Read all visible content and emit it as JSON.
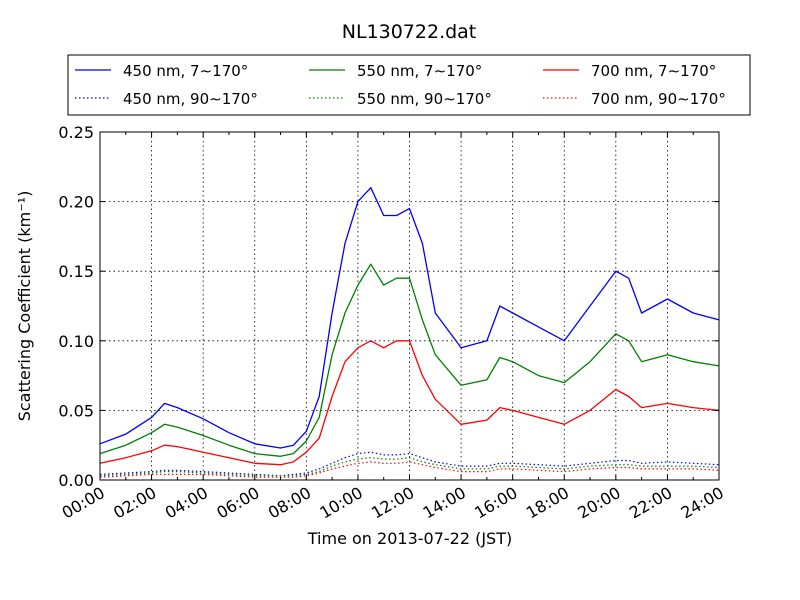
{
  "chart_data": {
    "type": "line",
    "title": "NL130722.dat",
    "xlabel": "Time on 2013-07-22 (JST)",
    "ylabel": "Scattering Coefficient (km⁻¹)",
    "xlim": [
      "00:00",
      "24:00"
    ],
    "ylim": [
      0,
      0.25
    ],
    "x_ticks": [
      "00:00",
      "02:00",
      "04:00",
      "06:00",
      "08:00",
      "10:00",
      "12:00",
      "14:00",
      "16:00",
      "18:00",
      "20:00",
      "22:00",
      "24:00"
    ],
    "y_ticks": [
      "0.00",
      "0.05",
      "0.10",
      "0.15",
      "0.20",
      "0.25"
    ],
    "grid": true,
    "legend_position": "top",
    "x_hours": [
      0,
      1,
      2,
      2.5,
      3,
      4,
      5,
      6,
      7,
      7.5,
      8,
      8.5,
      9,
      9.5,
      10,
      10.5,
      11,
      11.5,
      12,
      12.5,
      13,
      14,
      15,
      15.5,
      16,
      17,
      18,
      19,
      20,
      20.5,
      21,
      22,
      23,
      24
    ],
    "series": [
      {
        "name": "450 nm, 7∼170°",
        "color": "#0000ff",
        "style": "solid",
        "values": [
          0.026,
          0.033,
          0.045,
          0.055,
          0.052,
          0.044,
          0.034,
          0.026,
          0.023,
          0.025,
          0.035,
          0.06,
          0.12,
          0.17,
          0.2,
          0.21,
          0.19,
          0.19,
          0.195,
          0.17,
          0.12,
          0.095,
          0.1,
          0.125,
          0.12,
          0.11,
          0.1,
          0.125,
          0.15,
          0.145,
          0.12,
          0.13,
          0.12,
          0.115
        ]
      },
      {
        "name": "550 nm, 7∼170°",
        "color": "#008000",
        "style": "solid",
        "values": [
          0.019,
          0.025,
          0.034,
          0.04,
          0.038,
          0.032,
          0.025,
          0.019,
          0.017,
          0.019,
          0.028,
          0.045,
          0.09,
          0.12,
          0.14,
          0.155,
          0.14,
          0.145,
          0.145,
          0.115,
          0.09,
          0.068,
          0.072,
          0.088,
          0.085,
          0.075,
          0.07,
          0.085,
          0.105,
          0.1,
          0.085,
          0.09,
          0.085,
          0.082
        ]
      },
      {
        "name": "700 nm, 7∼170°",
        "color": "#ff0000",
        "style": "solid",
        "values": [
          0.012,
          0.016,
          0.021,
          0.025,
          0.024,
          0.02,
          0.016,
          0.012,
          0.011,
          0.013,
          0.02,
          0.03,
          0.06,
          0.085,
          0.095,
          0.1,
          0.095,
          0.1,
          0.1,
          0.075,
          0.058,
          0.04,
          0.043,
          0.052,
          0.05,
          0.045,
          0.04,
          0.05,
          0.065,
          0.06,
          0.052,
          0.055,
          0.052,
          0.05
        ]
      },
      {
        "name": "450 nm, 90∼170°",
        "color": "#0000ff",
        "style": "dotted",
        "values": [
          0.004,
          0.005,
          0.006,
          0.007,
          0.007,
          0.006,
          0.005,
          0.004,
          0.003,
          0.004,
          0.005,
          0.008,
          0.012,
          0.016,
          0.019,
          0.02,
          0.018,
          0.018,
          0.019,
          0.016,
          0.013,
          0.01,
          0.01,
          0.012,
          0.012,
          0.011,
          0.01,
          0.012,
          0.014,
          0.014,
          0.012,
          0.013,
          0.012,
          0.011
        ]
      },
      {
        "name": "550 nm, 90∼170°",
        "color": "#008000",
        "style": "dotted",
        "values": [
          0.003,
          0.004,
          0.005,
          0.006,
          0.006,
          0.005,
          0.004,
          0.003,
          0.003,
          0.003,
          0.004,
          0.006,
          0.01,
          0.013,
          0.015,
          0.016,
          0.015,
          0.015,
          0.016,
          0.013,
          0.011,
          0.008,
          0.008,
          0.01,
          0.01,
          0.009,
          0.008,
          0.01,
          0.011,
          0.011,
          0.01,
          0.01,
          0.01,
          0.009
        ]
      },
      {
        "name": "700 nm, 90∼170°",
        "color": "#ff0000",
        "style": "dotted",
        "values": [
          0.002,
          0.003,
          0.004,
          0.004,
          0.004,
          0.004,
          0.003,
          0.002,
          0.002,
          0.002,
          0.003,
          0.005,
          0.008,
          0.01,
          0.012,
          0.013,
          0.012,
          0.012,
          0.013,
          0.011,
          0.009,
          0.006,
          0.006,
          0.008,
          0.008,
          0.007,
          0.006,
          0.008,
          0.009,
          0.009,
          0.008,
          0.008,
          0.008,
          0.007
        ]
      }
    ]
  }
}
